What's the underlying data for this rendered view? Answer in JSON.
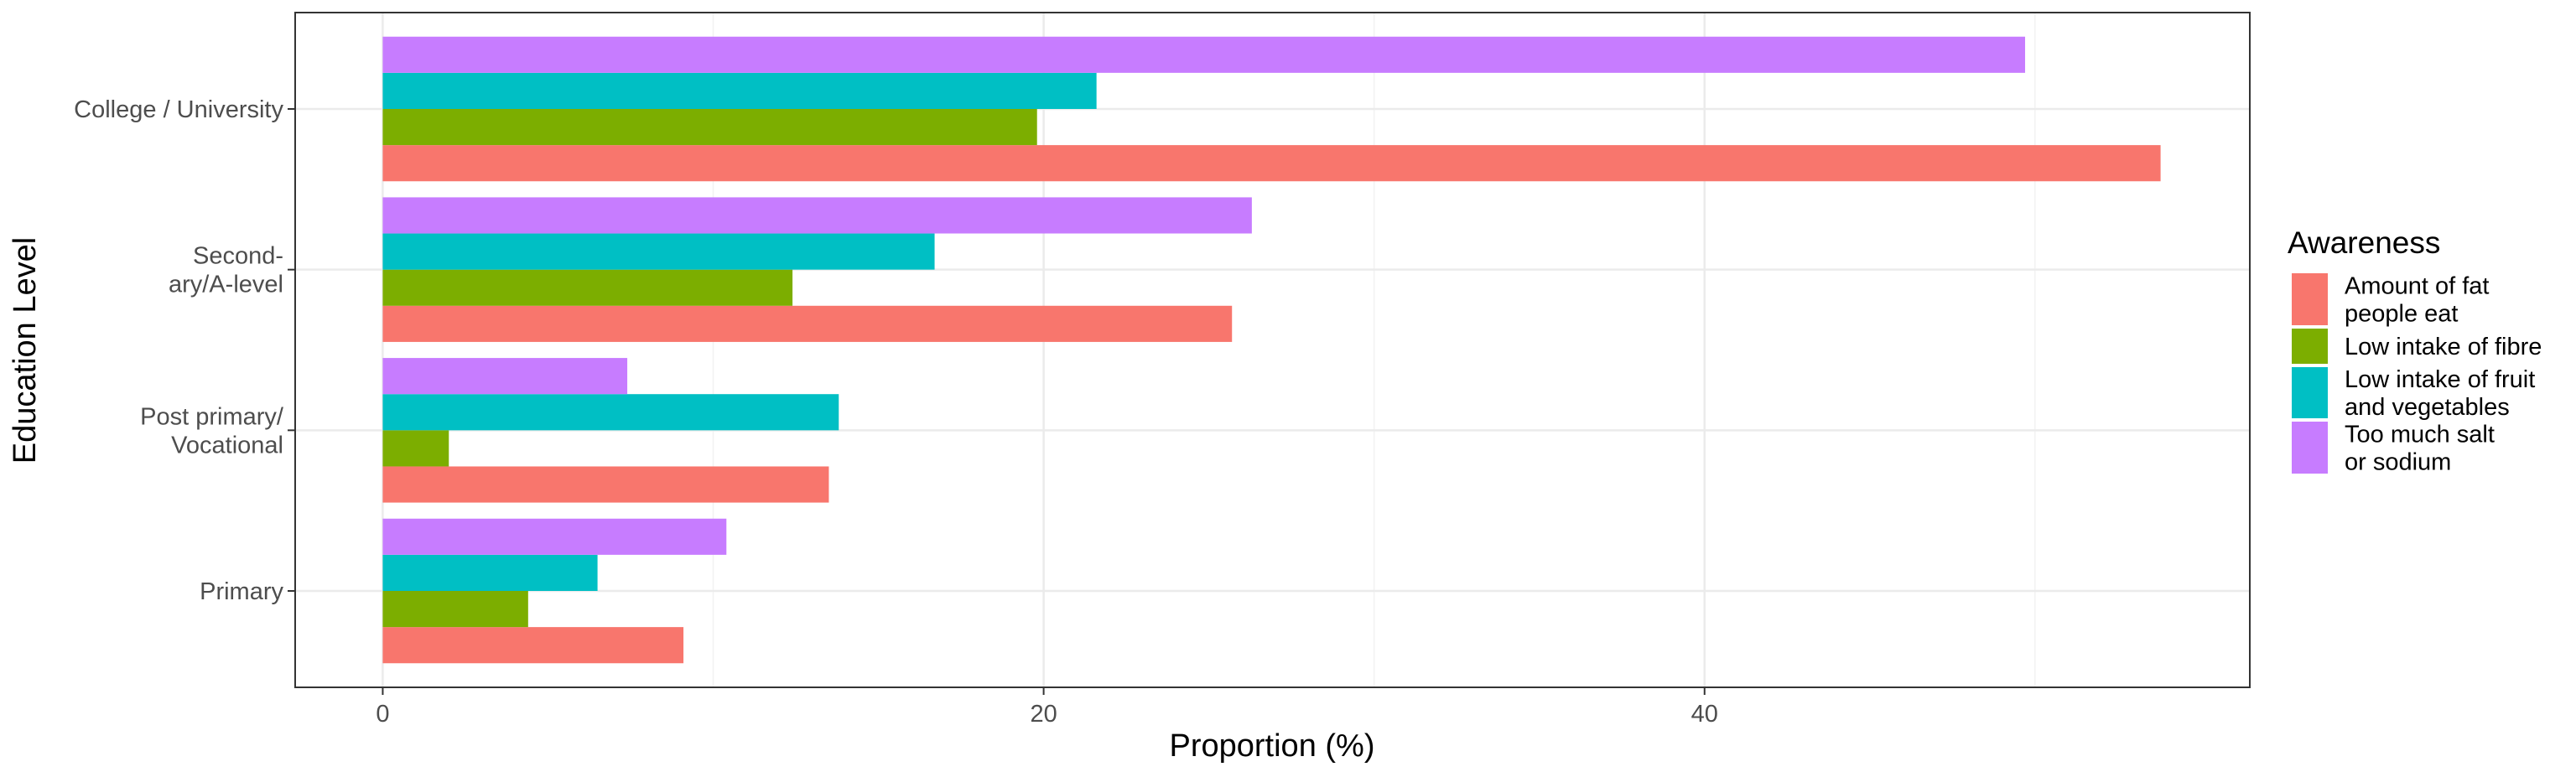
{
  "chart_data": {
    "type": "bar",
    "orientation": "horizontal",
    "title": "",
    "xlabel": "Proportion (%)",
    "ylabel": "Education Level",
    "xlim": [
      -2.65,
      56.5
    ],
    "xticks": [
      0,
      20,
      40
    ],
    "grid": true,
    "legend": {
      "title": "Awareness",
      "position": "right"
    },
    "categories": [
      [
        "College / University"
      ],
      [
        "Second-",
        "ary/A-level"
      ],
      [
        "Post primary/",
        "Vocational"
      ],
      [
        "Primary"
      ]
    ],
    "series": [
      {
        "name": [
          "Amount of fat",
          "people eat"
        ],
        "color": "#F8766D",
        "values": [
          53.8,
          25.7,
          13.5,
          9.1
        ]
      },
      {
        "name": [
          "Low intake of fibre"
        ],
        "color": "#7CAE00",
        "values": [
          19.8,
          12.4,
          2.0,
          4.4
        ]
      },
      {
        "name": [
          "Low intake of fruit",
          "and vegetables"
        ],
        "color": "#00BFC4",
        "values": [
          21.6,
          16.7,
          13.8,
          6.5
        ]
      },
      {
        "name": [
          "Too much salt",
          "or sodium"
        ],
        "color": "#C77CFF",
        "values": [
          49.7,
          26.3,
          7.4,
          10.4
        ]
      }
    ]
  }
}
